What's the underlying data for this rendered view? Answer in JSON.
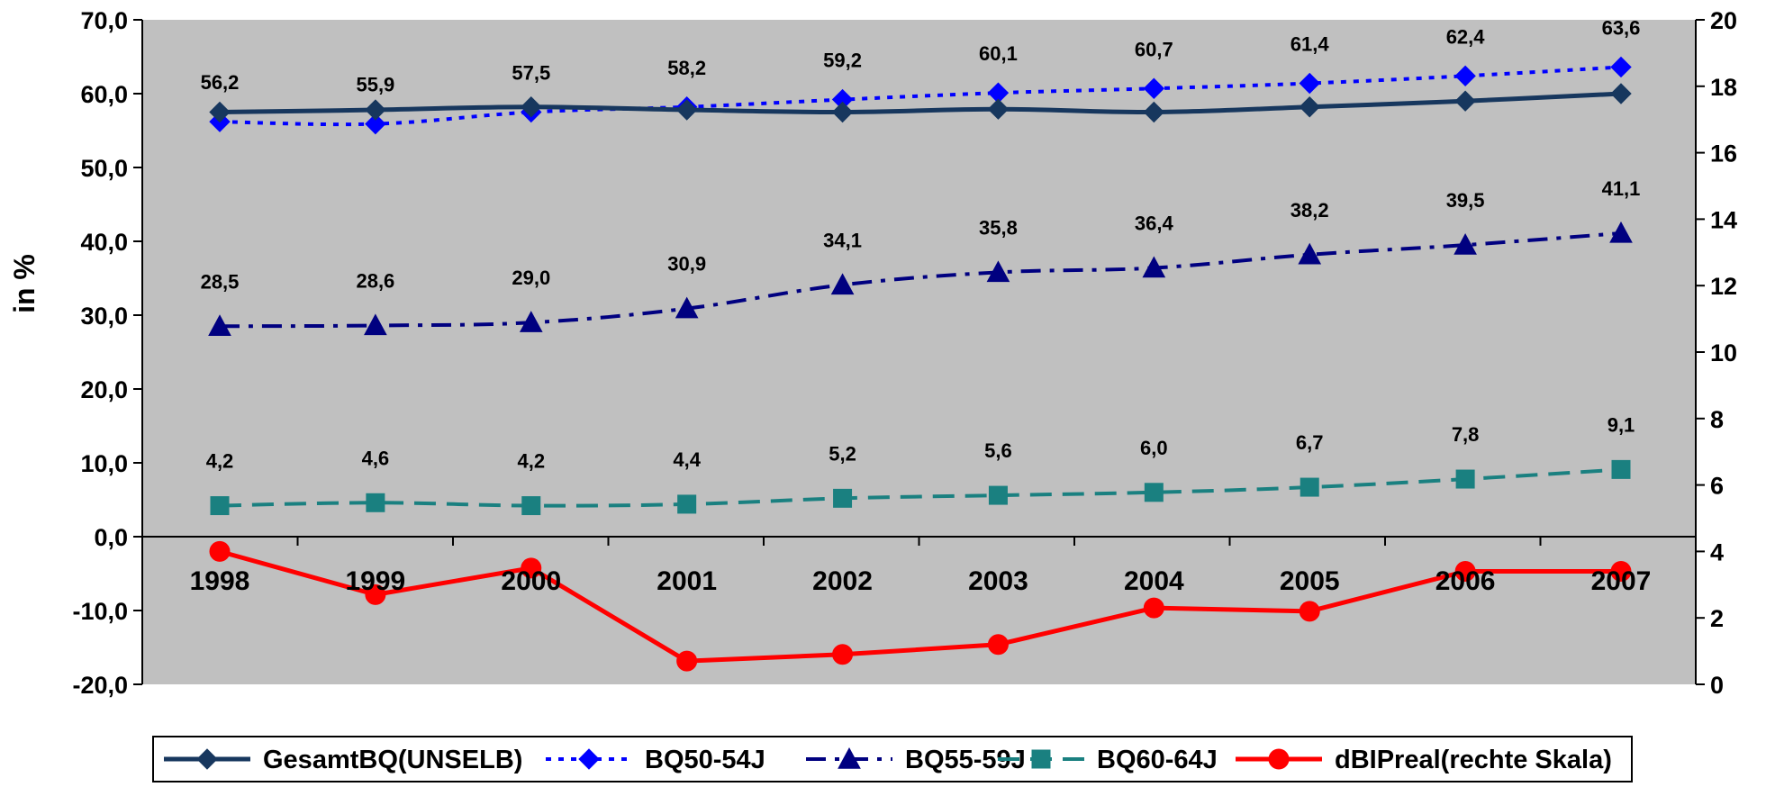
{
  "chart_data": {
    "type": "line",
    "ylabel": "in %",
    "y_left": {
      "min": -20,
      "max": 70,
      "step": 10,
      "tick_labels": [
        "-20,0",
        "-10,0",
        "0,0",
        "10,0",
        "20,0",
        "30,0",
        "40,0",
        "50,0",
        "60,0",
        "70,0"
      ]
    },
    "y_right": {
      "min": 0,
      "max": 20,
      "step": 2,
      "tick_labels": [
        "0",
        "2",
        "4",
        "6",
        "8",
        "10",
        "12",
        "14",
        "16",
        "18",
        "20"
      ]
    },
    "categories": [
      "1998",
      "1999",
      "2000",
      "2001",
      "2002",
      "2003",
      "2004",
      "2005",
      "2006",
      "2007"
    ],
    "plot_background": "#c0c0c0",
    "legend_position": "bottom",
    "series": [
      {
        "name": "GesamtBQ(UNSELB)",
        "axis": "left",
        "color": "#17375e",
        "dash": "solid",
        "marker": "diamond",
        "values": [
          57.5,
          57.8,
          58.2,
          57.8,
          57.5,
          57.9,
          57.5,
          58.2,
          59.0,
          60.0
        ],
        "labels": []
      },
      {
        "name": "BQ50-54J",
        "axis": "left",
        "color": "#0000ff",
        "dash": "dot",
        "marker": "diamond",
        "values": [
          56.2,
          55.9,
          57.5,
          58.2,
          59.2,
          60.1,
          60.7,
          61.4,
          62.4,
          63.6
        ],
        "labels": [
          "56,2",
          "55,9",
          "57,5",
          "58,2",
          "59,2",
          "60,1",
          "60,7",
          "61,4",
          "62,4",
          "63,6"
        ]
      },
      {
        "name": "BQ55-59J",
        "axis": "left",
        "color": "#000080",
        "dash": "dashdot",
        "marker": "triangle",
        "values": [
          28.5,
          28.6,
          29.0,
          30.9,
          34.1,
          35.8,
          36.4,
          38.2,
          39.5,
          41.1
        ],
        "labels": [
          "28,5",
          "28,6",
          "29,0",
          "30,9",
          "34,1",
          "35,8",
          "36,4",
          "38,2",
          "39,5",
          "41,1"
        ]
      },
      {
        "name": "BQ60-64J",
        "axis": "left",
        "color": "#1a8080",
        "dash": "dash",
        "marker": "square",
        "values": [
          4.2,
          4.6,
          4.2,
          4.4,
          5.2,
          5.6,
          6.0,
          6.7,
          7.8,
          9.1
        ],
        "labels": [
          "4,2",
          "4,6",
          "4,2",
          "4,4",
          "5,2",
          "5,6",
          "6,0",
          "6,7",
          "7,8",
          "9,1"
        ]
      },
      {
        "name": "dBIPreal(rechte Skala)",
        "axis": "right",
        "color": "#ff0000",
        "dash": "solid",
        "marker": "circle",
        "values": [
          4.0,
          2.7,
          3.5,
          0.7,
          0.9,
          1.2,
          2.3,
          2.2,
          3.4,
          3.4
        ],
        "labels": []
      }
    ]
  }
}
